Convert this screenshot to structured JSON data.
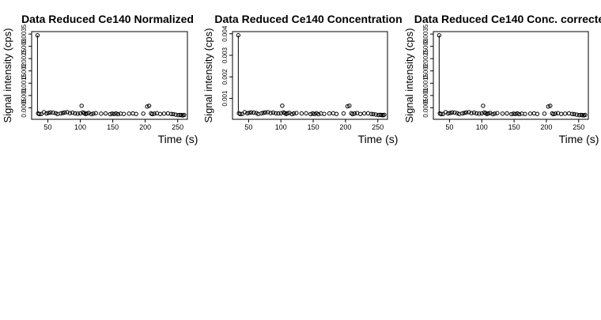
{
  "chart_data": [
    {
      "type": "scatter",
      "title": "Data Reduced Ce140 Normalized",
      "xlabel": "Time (s)",
      "ylabel": "Signal intensity (cps)",
      "xlim": [
        25,
        265
      ],
      "ylim": [
        3e-05,
        0.0036
      ],
      "xticks": [
        50,
        100,
        150,
        200,
        250
      ],
      "xtick_labels": [
        "50",
        "100",
        "150",
        "200",
        "250"
      ],
      "yticks": [
        0.0005,
        0.001,
        0.0015,
        0.002,
        0.0025,
        0.003,
        0.0035
      ],
      "ytick_labels": [
        "0.0005",
        "0.001",
        "0.0015",
        "0.002",
        "0.0025",
        "0.003",
        "0.0035"
      ],
      "spike": {
        "x": 34,
        "y": 0.00345
      },
      "x": [
        35,
        37,
        40,
        44,
        48,
        51,
        54,
        58,
        62,
        65,
        70,
        73,
        76,
        80,
        84,
        88,
        92,
        96,
        100,
        102,
        104,
        106,
        108,
        110,
        113,
        117,
        120,
        124,
        132,
        139,
        146,
        149,
        152,
        155,
        158,
        162,
        167,
        175,
        181,
        186,
        197,
        203,
        206,
        209,
        211,
        214,
        218,
        223,
        229,
        235,
        240,
        243,
        247,
        251,
        254,
        256,
        258,
        260
      ],
      "y": [
        0.00027,
        0.00024,
        0.00025,
        0.00032,
        0.00027,
        0.00029,
        0.00031,
        0.0003,
        0.00028,
        0.00025,
        0.00027,
        0.00029,
        0.00031,
        0.00032,
        0.00028,
        0.0003,
        0.00027,
        0.00026,
        0.00027,
        0.00058,
        0.00031,
        0.00028,
        0.00025,
        0.00027,
        0.00029,
        0.00024,
        0.00026,
        0.00028,
        0.00026,
        0.00027,
        0.00024,
        0.00026,
        0.00025,
        0.00027,
        0.00024,
        0.00026,
        0.00025,
        0.00026,
        0.00027,
        0.00025,
        0.00026,
        0.00055,
        0.00058,
        0.00027,
        0.00024,
        0.00026,
        0.00028,
        0.00025,
        0.00026,
        0.00027,
        0.00025,
        0.00024,
        0.00022,
        0.0002,
        0.00021,
        0.0002,
        0.00019,
        0.00021
      ],
      "grid": false
    },
    {
      "type": "scatter",
      "title": "Data Reduced Ce140 Concentration",
      "xlabel": "Time (s)",
      "ylabel": "Signal intensity (cps)",
      "xlim": [
        25,
        265
      ],
      "ylim": [
        3e-05,
        0.0041
      ],
      "xticks": [
        50,
        100,
        150,
        200,
        250
      ],
      "xtick_labels": [
        "50",
        "100",
        "150",
        "200",
        "250"
      ],
      "yticks": [
        0.001,
        0.002,
        0.003,
        0.004
      ],
      "ytick_labels": [
        "0.001",
        "0.002",
        "0.003",
        "0.004"
      ],
      "spike": {
        "x": 34,
        "y": 0.00393
      },
      "x": [
        35,
        37,
        40,
        44,
        48,
        51,
        54,
        58,
        62,
        65,
        70,
        73,
        76,
        80,
        84,
        88,
        92,
        96,
        100,
        102,
        104,
        106,
        108,
        110,
        113,
        117,
        120,
        124,
        132,
        139,
        146,
        149,
        152,
        155,
        158,
        162,
        167,
        175,
        181,
        186,
        197,
        203,
        206,
        209,
        211,
        214,
        218,
        223,
        229,
        235,
        240,
        243,
        247,
        251,
        254,
        256,
        258,
        260
      ],
      "y": [
        0.00031,
        0.00027,
        0.00028,
        0.00036,
        0.00031,
        0.00033,
        0.00035,
        0.00034,
        0.00032,
        0.00028,
        0.00031,
        0.00033,
        0.00035,
        0.00036,
        0.00032,
        0.00034,
        0.00031,
        0.0003,
        0.00031,
        0.00066,
        0.00035,
        0.00032,
        0.00028,
        0.00031,
        0.00033,
        0.00027,
        0.0003,
        0.00032,
        0.0003,
        0.00031,
        0.00027,
        0.0003,
        0.00028,
        0.00031,
        0.00027,
        0.0003,
        0.00028,
        0.0003,
        0.00031,
        0.00028,
        0.0003,
        0.00063,
        0.00066,
        0.00031,
        0.00027,
        0.0003,
        0.00032,
        0.00028,
        0.0003,
        0.00031,
        0.00028,
        0.00027,
        0.00025,
        0.00023,
        0.00024,
        0.00023,
        0.00022,
        0.00024
      ],
      "grid": false
    },
    {
      "type": "scatter",
      "title": "Data Reduced Ce140 Conc. correcte",
      "xlabel": "Time (s)",
      "ylabel": "Signal intensity (cps)",
      "xlim": [
        25,
        265
      ],
      "ylim": [
        3e-05,
        0.0036
      ],
      "xticks": [
        50,
        100,
        150,
        200,
        250
      ],
      "xtick_labels": [
        "50",
        "100",
        "150",
        "200",
        "250"
      ],
      "yticks": [
        0.0005,
        0.001,
        0.0015,
        0.002,
        0.0025,
        0.003,
        0.0035
      ],
      "ytick_labels": [
        "0.0005",
        "0.001",
        "0.0015",
        "0.002",
        "0.0025",
        "0.003",
        "0.0035"
      ],
      "spike": {
        "x": 34,
        "y": 0.00345
      },
      "x": [
        35,
        37,
        40,
        44,
        48,
        51,
        54,
        58,
        62,
        65,
        70,
        73,
        76,
        80,
        84,
        88,
        92,
        96,
        100,
        102,
        104,
        106,
        108,
        110,
        113,
        117,
        120,
        124,
        132,
        139,
        146,
        149,
        152,
        155,
        158,
        162,
        167,
        175,
        181,
        186,
        197,
        203,
        206,
        209,
        211,
        214,
        218,
        223,
        229,
        235,
        240,
        243,
        247,
        251,
        254,
        256,
        258,
        260
      ],
      "y": [
        0.00027,
        0.00024,
        0.00025,
        0.00032,
        0.00027,
        0.00029,
        0.00031,
        0.0003,
        0.00028,
        0.00025,
        0.00027,
        0.00029,
        0.00031,
        0.00032,
        0.00028,
        0.0003,
        0.00027,
        0.00026,
        0.00027,
        0.00058,
        0.00031,
        0.00028,
        0.00025,
        0.00027,
        0.00029,
        0.00024,
        0.00026,
        0.00028,
        0.00026,
        0.00027,
        0.00024,
        0.00026,
        0.00025,
        0.00027,
        0.00024,
        0.00026,
        0.00025,
        0.00026,
        0.00027,
        0.00025,
        0.00026,
        0.00055,
        0.00058,
        0.00027,
        0.00024,
        0.00026,
        0.00028,
        0.00025,
        0.00026,
        0.00027,
        0.00025,
        0.00024,
        0.00022,
        0.0002,
        0.00021,
        0.0002,
        0.00019,
        0.00021
      ],
      "grid": false
    }
  ]
}
